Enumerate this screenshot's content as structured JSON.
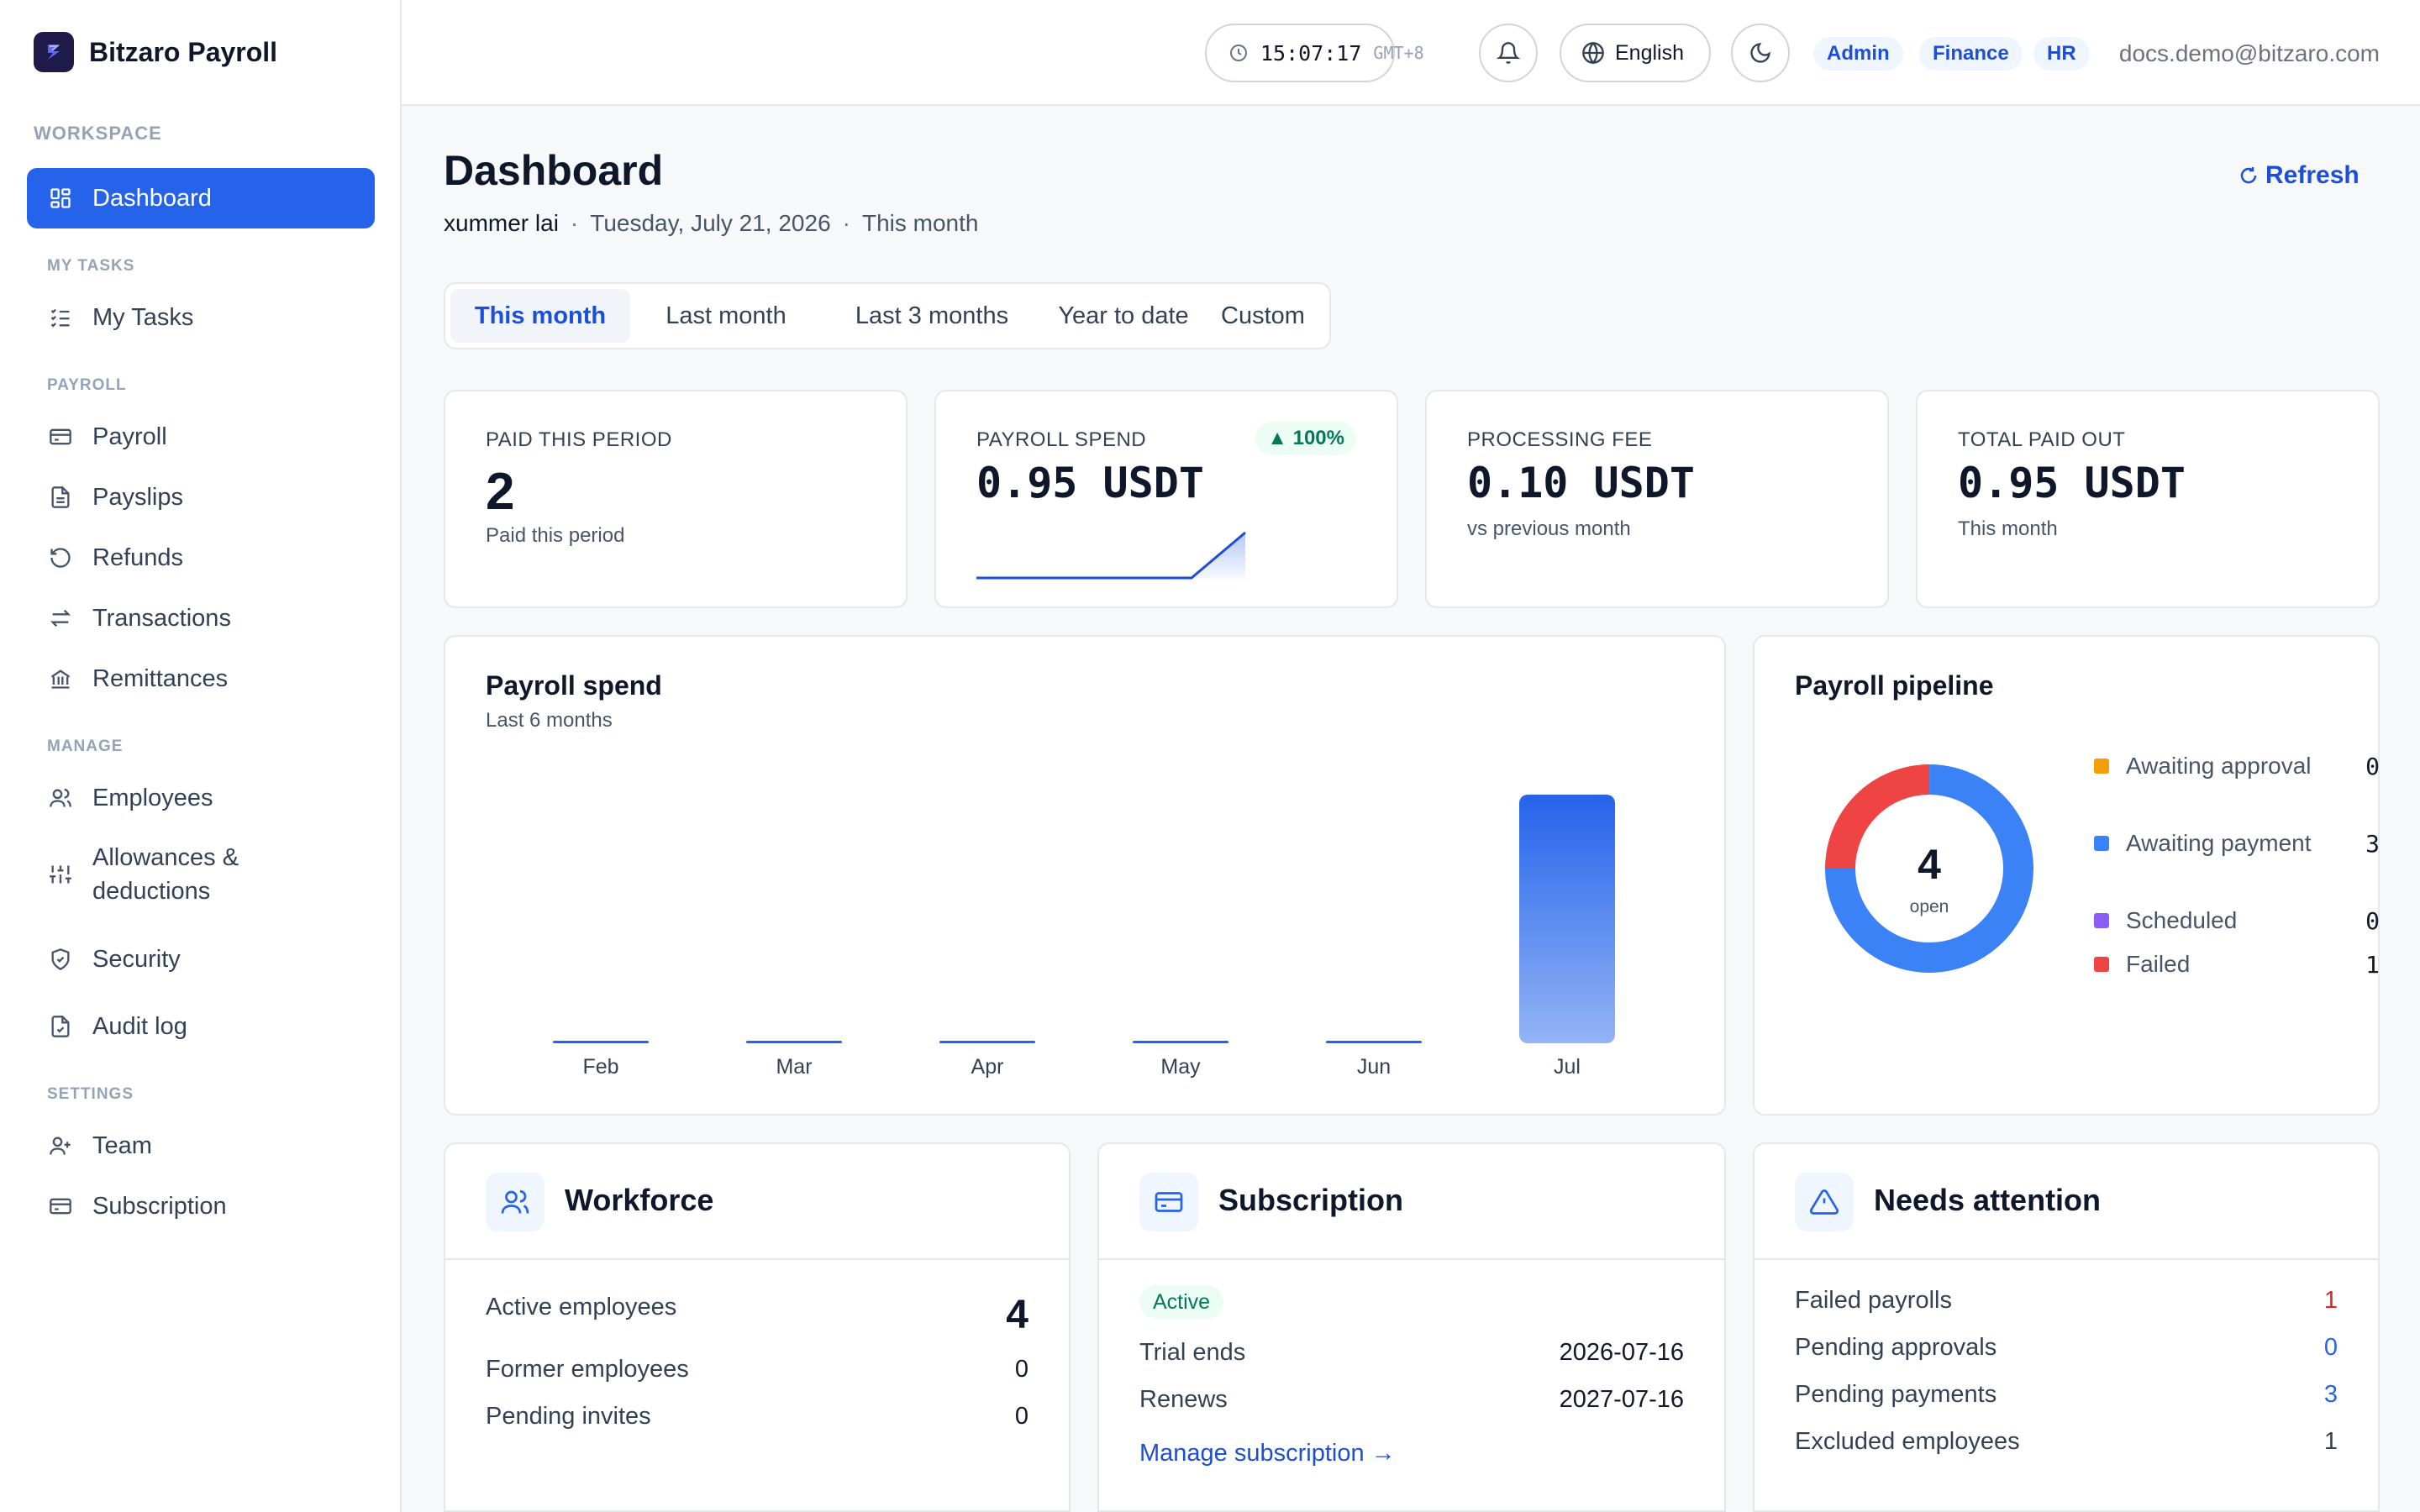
{
  "brand": {
    "name": "Bitzaro Payroll"
  },
  "sidebar": {
    "workspace_label": "WORKSPACE",
    "dashboard": "Dashboard",
    "sections": {
      "my_tasks": "MY TASKS",
      "payroll": "PAYROLL",
      "manage": "MANAGE",
      "settings": "SETTINGS"
    },
    "items": {
      "my_tasks": "My Tasks",
      "payroll": "Payroll",
      "payslips": "Payslips",
      "refunds": "Refunds",
      "transactions": "Transactions",
      "remittances": "Remittances",
      "employees": "Employees",
      "allowances_1": "Allowances &",
      "allowances_2": "deductions",
      "security": "Security",
      "audit_log": "Audit log",
      "team": "Team",
      "subscription": "Subscription"
    }
  },
  "topbar": {
    "clock": "15:07:17",
    "timezone": "GMT+8",
    "language": "English",
    "roles": [
      "Admin",
      "Finance",
      "HR"
    ],
    "email": "docs.demo@bitzaro.com"
  },
  "header": {
    "title": "Dashboard",
    "user": "xummer lai",
    "date": "Tuesday, July 21, 2026",
    "period": "This month",
    "refresh": "Refresh"
  },
  "range_tabs": [
    "This month",
    "Last month",
    "Last 3 months",
    "Year to date",
    "Custom"
  ],
  "kpis": {
    "paid": {
      "label": "PAID THIS PERIOD",
      "value": "2",
      "sub": "Paid this period"
    },
    "spend": {
      "label": "PAYROLL SPEND",
      "value": "0.95 USDT",
      "trend": "▲ 100%",
      "sparkline": [
        0,
        0,
        0,
        0,
        0,
        0.95
      ]
    },
    "fee": {
      "label": "PROCESSING FEE",
      "value": "0.10 USDT",
      "sub": "vs previous month"
    },
    "total": {
      "label": "TOTAL PAID OUT",
      "value": "0.95 USDT",
      "sub": "This month"
    }
  },
  "spend_chart": {
    "title": "Payroll spend",
    "subtitle": "Last 6 months",
    "colors": {
      "bar": "#2563eb"
    }
  },
  "chart_data": {
    "type": "bar",
    "categories": [
      "Feb",
      "Mar",
      "Apr",
      "May",
      "Jun",
      "Jul"
    ],
    "values": [
      0,
      0,
      0,
      0,
      0,
      0.95
    ],
    "title": "Payroll spend",
    "subtitle": "Last 6 months",
    "xlabel": "",
    "ylabel": "",
    "ylim": [
      0,
      0.95
    ],
    "grid": false
  },
  "pipeline": {
    "title": "Payroll pipeline",
    "total": "4",
    "total_label": "open",
    "items": [
      {
        "label": "Awaiting approval",
        "value": "0",
        "color": "#f59e0b"
      },
      {
        "label": "Awaiting payment",
        "value": "3",
        "color": "#3b82f6"
      },
      {
        "label": "Scheduled",
        "value": "0",
        "color": "#8b5cf6"
      },
      {
        "label": "Failed",
        "value": "1",
        "color": "#ef4444"
      }
    ]
  },
  "workforce": {
    "title": "Workforce",
    "rows": [
      {
        "label": "Active employees",
        "value": "4"
      },
      {
        "label": "Former employees",
        "value": "0"
      },
      {
        "label": "Pending invites",
        "value": "0"
      }
    ]
  },
  "subscription": {
    "title": "Subscription",
    "status": "Active",
    "rows": [
      {
        "label": "Trial ends",
        "value": "2026-07-16"
      },
      {
        "label": "Renews",
        "value": "2027-07-16"
      }
    ],
    "manage_link": "Manage subscription →"
  },
  "attention": {
    "title": "Needs attention",
    "rows": [
      {
        "label": "Failed payrolls",
        "value": "1",
        "color": "#dc2626"
      },
      {
        "label": "Pending approvals",
        "value": "0",
        "color": "#2563eb"
      },
      {
        "label": "Pending payments",
        "value": "3",
        "color": "#2563eb"
      },
      {
        "label": "Excluded employees",
        "value": "1",
        "color": "#334155"
      }
    ]
  }
}
